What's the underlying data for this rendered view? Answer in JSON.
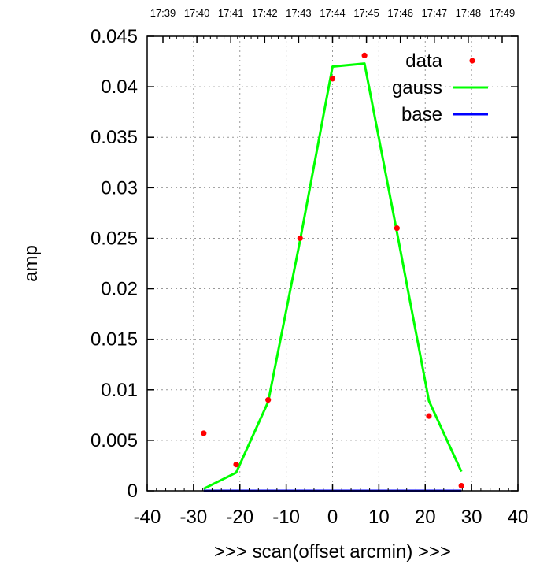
{
  "chart_data": {
    "type": "scatter",
    "title": "",
    "xlabel": ">>> scan(offset arcmin) >>>",
    "ylabel": "amp",
    "xlim": [
      -40,
      40
    ],
    "ylim": [
      0,
      0.045
    ],
    "x_ticks": [
      -40,
      -30,
      -20,
      -10,
      0,
      10,
      20,
      30,
      40
    ],
    "x_tick_labels": [
      "-40",
      "-30",
      "-20",
      "-10",
      "0",
      "10",
      "20",
      "30",
      "40"
    ],
    "y_ticks": [
      0,
      0.005,
      0.01,
      0.015,
      0.02,
      0.025,
      0.03,
      0.035,
      0.04,
      0.045
    ],
    "y_tick_labels": [
      "0",
      "0.005",
      "0.01",
      "0.015",
      "0.02",
      "0.025",
      "0.03",
      "0.035",
      "0.04",
      "0.045"
    ],
    "top_tick_labels": [
      "17:39",
      "17:40",
      "17:41",
      "17:42",
      "17:43",
      "17:44",
      "17:45",
      "17:46",
      "17:47",
      "17:48",
      "17:49"
    ],
    "grid": true,
    "legend_position": "top-right",
    "series": [
      {
        "name": "data",
        "kind": "points",
        "color": "#ff0000",
        "points": [
          {
            "x": -27.8,
            "y": 0.0057
          },
          {
            "x": -20.8,
            "y": 0.0026
          },
          {
            "x": -13.9,
            "y": 0.009
          },
          {
            "x": -7.0,
            "y": 0.025
          },
          {
            "x": 0.0,
            "y": 0.0408
          },
          {
            "x": 6.9,
            "y": 0.0431
          },
          {
            "x": 13.9,
            "y": 0.026
          },
          {
            "x": 20.8,
            "y": 0.0074
          },
          {
            "x": 27.8,
            "y": 0.0005
          }
        ]
      },
      {
        "name": "gauss",
        "kind": "line",
        "color": "#00ff00",
        "points": [
          {
            "x": -27.8,
            "y": 0.0002
          },
          {
            "x": -20.8,
            "y": 0.0018
          },
          {
            "x": -13.9,
            "y": 0.0088
          },
          {
            "x": -7.0,
            "y": 0.0248
          },
          {
            "x": 0.0,
            "y": 0.042
          },
          {
            "x": 6.9,
            "y": 0.0423
          },
          {
            "x": 13.9,
            "y": 0.0256
          },
          {
            "x": 20.8,
            "y": 0.0089
          },
          {
            "x": 27.8,
            "y": 0.0019
          }
        ]
      },
      {
        "name": "base",
        "kind": "line",
        "color": "#0000ff",
        "points": [
          {
            "x": -27.8,
            "y": 0.0
          },
          {
            "x": 27.8,
            "y": 0.0
          }
        ]
      }
    ]
  }
}
